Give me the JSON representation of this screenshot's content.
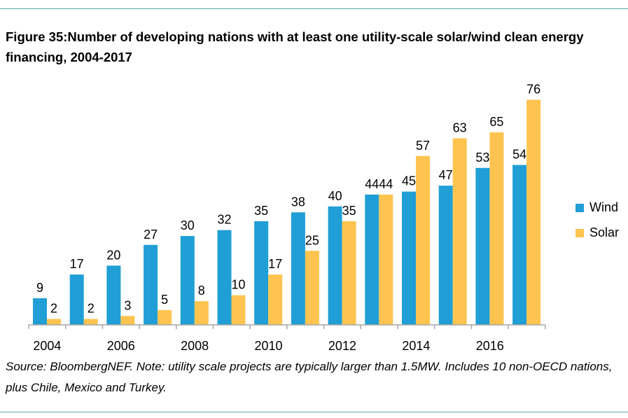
{
  "figure": {
    "title": "Figure 35:Number of developing nations with at least one utility-scale solar/wind clean energy financing, 2004-2017",
    "source": "Source: BloombergNEF. Note: utility scale projects are typically larger than 1.5MW.  Includes 10 non-OECD nations, plus Chile, Mexico and Turkey."
  },
  "colors": {
    "wind": "#1f9fd6",
    "solar": "#fec44f",
    "rule": "#5aa7a7",
    "axis": "#a6a6a6"
  },
  "chart_data": {
    "type": "bar",
    "categories": [
      "2004",
      "2005",
      "2006",
      "2007",
      "2008",
      "2009",
      "2010",
      "2011",
      "2012",
      "2013",
      "2014",
      "2015",
      "2016",
      "2017"
    ],
    "x_tick_labels": [
      "2004",
      "2006",
      "2008",
      "2010",
      "2012",
      "2014",
      "2016"
    ],
    "series": [
      {
        "name": "Wind",
        "color": "#1f9fd6",
        "values": [
          9,
          17,
          20,
          27,
          30,
          32,
          35,
          38,
          40,
          44,
          45,
          47,
          53,
          54
        ]
      },
      {
        "name": "Solar",
        "color": "#fec44f",
        "values": [
          2,
          2,
          3,
          5,
          8,
          10,
          17,
          25,
          35,
          44,
          57,
          63,
          65,
          76
        ]
      }
    ],
    "ylim": [
      0,
      76
    ],
    "legend_position": "right",
    "grid": false
  }
}
